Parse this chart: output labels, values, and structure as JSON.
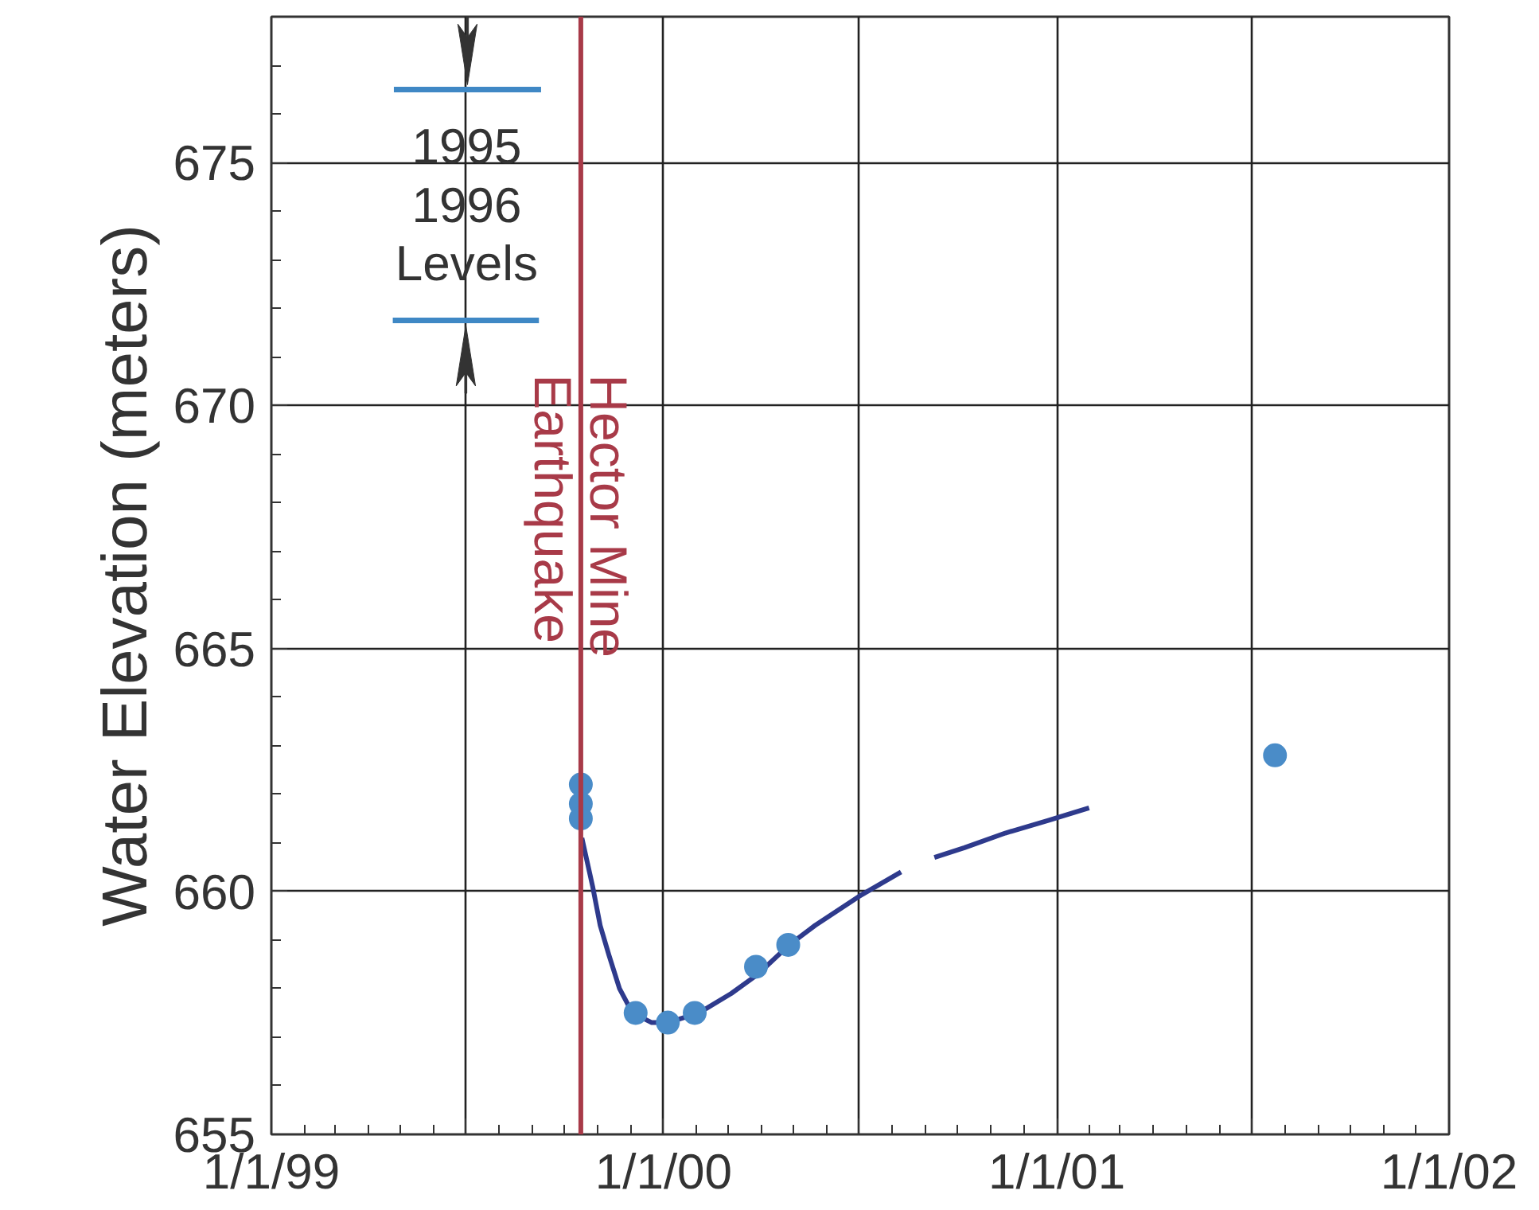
{
  "chart_data": {
    "type": "line",
    "ylabel": "Water Elevation (meters)",
    "xlim": [
      "1999-01-01",
      "2002-01-01"
    ],
    "xticks": [
      {
        "value": "1999-01-01",
        "label": "1/1/99"
      },
      {
        "value": "1999-07-01",
        "label": null
      },
      {
        "value": "2000-01-01",
        "label": "1/1/00"
      },
      {
        "value": "2000-07-01",
        "label": null
      },
      {
        "value": "2001-01-01",
        "label": "1/1/01"
      },
      {
        "value": "2001-07-01",
        "label": null
      },
      {
        "value": "2002-01-01",
        "label": "1/1/02"
      }
    ],
    "ylim": [
      655,
      678
    ],
    "yticks": [
      655,
      660,
      665,
      670,
      675
    ],
    "grid": true,
    "series": [
      {
        "type": "line",
        "color": "#3f88c5",
        "x": [
          "1999-04-25",
          "1999-09-09"
        ],
        "values": [
          676.5,
          676.5
        ]
      },
      {
        "type": "line",
        "color": "#3f88c5",
        "x": [
          "1999-04-24",
          "1999-09-07"
        ],
        "values": [
          671.75,
          671.75
        ]
      },
      {
        "color": "#2e3a8c",
        "x": [
          "1999-10-17",
          "1999-10-27",
          "1999-11-03",
          "1999-11-11",
          "1999-11-21",
          "1999-12-03",
          "1999-12-21",
          "2000-01-05",
          "2000-02-03",
          "2000-03-04",
          "2000-03-29",
          "2000-04-27",
          "2000-05-21",
          "2000-07-01",
          "2000-08-09",
          "2000-08-25",
          "2000-09-09",
          "2000-10-07",
          "2000-11-14",
          "2000-12-24",
          "2001-01-31"
        ],
        "values": [
          661.1,
          660.1,
          659.3,
          658.7,
          658.0,
          657.5,
          657.3,
          657.3,
          657.5,
          657.9,
          658.3,
          658.9,
          659.3,
          659.9,
          660.4,
          null,
          660.7,
          660.9,
          661.2,
          661.46,
          661.72
        ]
      },
      {
        "type": "scatter",
        "color": "#4a8cc8",
        "marker": "circle",
        "x": [
          "1999-10-16",
          "1999-10-16",
          "1999-10-16",
          "1999-12-06",
          "2000-01-05",
          "2000-01-30",
          "2000-03-27",
          "2000-04-26",
          "2001-07-23"
        ],
        "values": [
          662.2,
          661.8,
          661.5,
          657.5,
          657.3,
          657.5,
          658.45,
          658.9,
          662.8
        ]
      }
    ],
    "ref_lines": [
      {
        "axis": "x",
        "value": "1999-10-16",
        "label": "Hector Mine\nEarthquake",
        "color": "#a83a48"
      }
    ],
    "annotations": [
      "1995\n1996\nLevels"
    ]
  }
}
